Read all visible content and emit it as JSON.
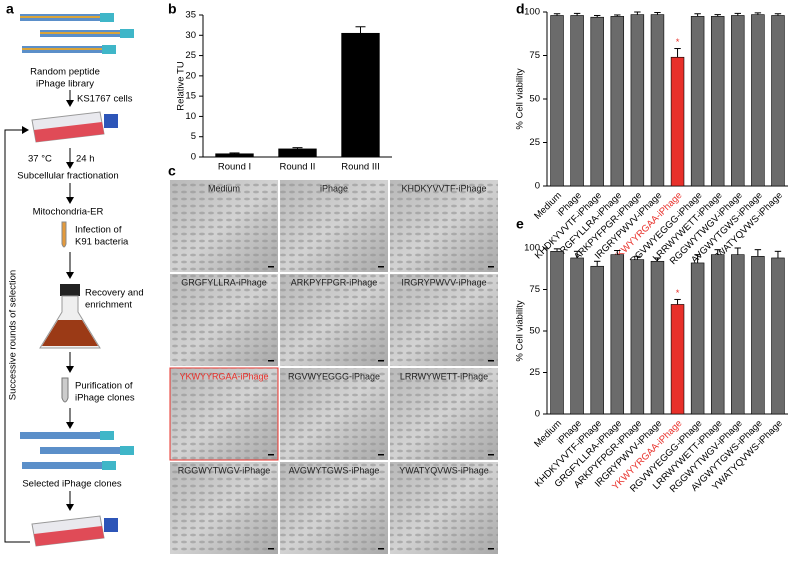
{
  "panels": [
    "a",
    "b",
    "c",
    "d",
    "e"
  ],
  "workflow": {
    "library": [
      "Random peptide",
      "iPhage library"
    ],
    "cells": "KS1767 cells",
    "temperature": "37 °C",
    "time": "24 h",
    "steps": [
      "Subcellular fractionation",
      "Mitochondria-ER"
    ],
    "infection": [
      "Infection of",
      "K91 bacteria"
    ],
    "recovery": [
      "Recovery and",
      "enrichment"
    ],
    "purification": [
      "Purification of",
      "iPhage clones"
    ],
    "selected": "Selected iPhage clones",
    "loop": "Successive rounds of selection"
  },
  "micrographs": {
    "labels": [
      "Medium",
      "iPhage",
      "KHDKYVVTF-iPhage",
      "GRGFYLLRA-iPhage",
      "ARKPYFPGR-iPhage",
      "IRGRYPWVV-iPhage",
      "YKWYYRGAA-iPhage",
      "RGVWYEGGG-iPhage",
      "LRRWYWETT-iPhage",
      "RGGWYTWGV-iPhage",
      "AVGWYTGWS-iPhage",
      "YWATYQVWS-iPhage"
    ]
  },
  "chart_data": [
    {
      "type": "bar",
      "ylabel": "Relative TU",
      "categories": [
        "Round I",
        "Round II",
        "Round III"
      ],
      "values": [
        0.8,
        2,
        30.5
      ],
      "errors": [
        0.2,
        0.3,
        1.6
      ],
      "color": "#000000",
      "ylim": [
        0,
        35
      ],
      "yticks": [
        0,
        5,
        10,
        15,
        20,
        25,
        30,
        35
      ]
    },
    {
      "type": "bar",
      "ylabel": "% Cell viability",
      "categories": [
        "Medium",
        "iPhage",
        "KHDKYVVTF-iPhage",
        "GRGFYLLRA-iPhage",
        "ARKPYFPGR-iPhage",
        "IRGRYPWVV-iPhage",
        "YKWYYRGAA-iPhage",
        "RGVWYEGGG-iPhage",
        "LRRWYWETT-iPhage",
        "RGGWYTWGV-iPhage",
        "AVGWYTGWS-iPhage",
        "YWATYQVWS-iPhage"
      ],
      "values": [
        98,
        98,
        97,
        97.5,
        98.5,
        98.5,
        74,
        97.5,
        97.5,
        98,
        98.5,
        98
      ],
      "errors": [
        1,
        1.2,
        1,
        0.8,
        1.5,
        1.2,
        5,
        1.5,
        1,
        1.2,
        1,
        1
      ],
      "colors": [
        "#6b6b6b",
        "#6b6b6b",
        "#6b6b6b",
        "#6b6b6b",
        "#6b6b6b",
        "#6b6b6b",
        "#e8302a",
        "#6b6b6b",
        "#6b6b6b",
        "#6b6b6b",
        "#6b6b6b",
        "#6b6b6b"
      ],
      "label_colors": [
        "#000000",
        "#000000",
        "#000000",
        "#000000",
        "#000000",
        "#000000",
        "#e8302a",
        "#000000",
        "#000000",
        "#000000",
        "#000000",
        "#000000"
      ],
      "annotations": [
        {
          "text": "*",
          "index": 6
        }
      ],
      "ylim": [
        0,
        100
      ],
      "yticks": [
        0,
        25,
        50,
        75,
        100
      ]
    },
    {
      "type": "bar",
      "ylabel": "% Cell viability",
      "categories": [
        "Medium",
        "iPhage",
        "KHDKYVVTF-iPhage",
        "GRGFYLLRA-iPhage",
        "ARKPYFPGR-iPhage",
        "IRGRYPWVV-iPhage",
        "YKWYYRGAA-iPhage",
        "RGVWYEGGG-iPhage",
        "LRRWYWETT-iPhage",
        "RGGWYTWGV-iPhage",
        "AVGWYTGWS-iPhage",
        "YWATYQVWS-iPhage"
      ],
      "values": [
        98,
        94,
        89,
        96,
        93,
        92,
        66,
        91,
        96,
        96,
        95,
        94
      ],
      "errors": [
        1.5,
        4,
        3,
        2.5,
        2,
        2,
        3,
        5,
        3,
        4,
        4,
        4
      ],
      "colors": [
        "#6b6b6b",
        "#6b6b6b",
        "#6b6b6b",
        "#6b6b6b",
        "#6b6b6b",
        "#6b6b6b",
        "#e8302a",
        "#6b6b6b",
        "#6b6b6b",
        "#6b6b6b",
        "#6b6b6b",
        "#6b6b6b"
      ],
      "label_colors": [
        "#000000",
        "#000000",
        "#000000",
        "#000000",
        "#000000",
        "#000000",
        "#e8302a",
        "#000000",
        "#000000",
        "#000000",
        "#000000",
        "#000000"
      ],
      "annotations": [
        {
          "text": "*",
          "index": 6
        }
      ],
      "ylim": [
        0,
        100
      ],
      "yticks": [
        0,
        25,
        50,
        75,
        100
      ]
    }
  ]
}
